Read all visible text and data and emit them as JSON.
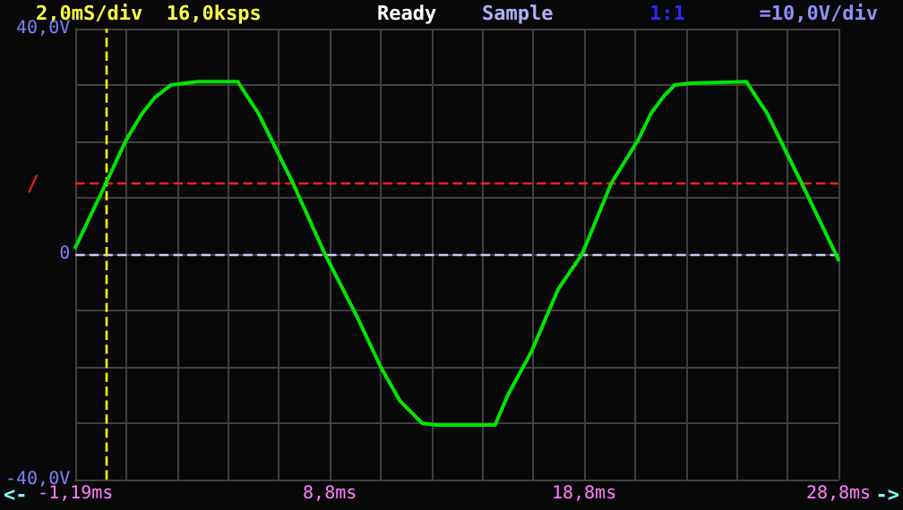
{
  "chart_data": {
    "type": "line",
    "annotations": [
      "2,0mS/div  16,0ksps",
      "Ready",
      "Sample",
      "1:1",
      "=10,0V/div",
      "<-",
      "->"
    ],
    "x": [
      -1.19,
      0.0,
      0.81,
      1.44,
      1.94,
      2.56,
      3.12,
      3.62,
      5.19,
      5.56,
      6.0,
      7.37,
      8.62,
      9.87,
      10.81,
      11.56,
      12.44,
      13.0,
      15.31,
      15.81,
      16.75,
      17.79,
      18.73,
      19.87,
      20.94,
      21.44,
      21.94,
      22.37,
      23.0,
      25.19,
      25.56,
      26.0,
      27.37,
      28.81
    ],
    "series": [
      {
        "color": "#00e600",
        "values": [
          1.2,
          12.5,
          20.3,
          25.0,
          27.8,
          30.0,
          30.3,
          30.6,
          30.6,
          28.0,
          25.0,
          12.5,
          0.0,
          -11.0,
          -20.0,
          -26.0,
          -30.0,
          -30.3,
          -30.3,
          -25.0,
          -17.2,
          -6.2,
          0.0,
          12.5,
          20.3,
          25.0,
          28.0,
          30.0,
          30.3,
          30.6,
          28.0,
          25.0,
          12.5,
          -1.0
        ]
      }
    ],
    "xlim": [
      -1.19,
      28.81
    ],
    "xticks": [
      {
        "value": -1.19,
        "label": "-1,19ms"
      },
      {
        "value": 0.81,
        "label": null
      },
      {
        "value": 2.81,
        "label": null
      },
      {
        "value": 4.81,
        "label": null
      },
      {
        "value": 6.81,
        "label": null
      },
      {
        "value": 8.81,
        "label": "8,8ms"
      },
      {
        "value": 10.81,
        "label": null
      },
      {
        "value": 12.81,
        "label": null
      },
      {
        "value": 14.81,
        "label": null
      },
      {
        "value": 16.81,
        "label": null
      },
      {
        "value": 18.81,
        "label": "18,8ms"
      },
      {
        "value": 20.81,
        "label": null
      },
      {
        "value": 22.81,
        "label": null
      },
      {
        "value": 24.81,
        "label": null
      },
      {
        "value": 26.81,
        "label": null
      },
      {
        "value": 28.81,
        "label": "28,8ms"
      }
    ],
    "ylim": [
      -40,
      40
    ],
    "yticks": [
      {
        "value": -40,
        "label": "-40,0V"
      },
      {
        "value": -30,
        "label": null
      },
      {
        "value": -20,
        "label": null
      },
      {
        "value": -10,
        "label": null
      },
      0,
      {
        "value": 10,
        "label": null
      },
      {
        "value": 20,
        "label": null
      },
      {
        "value": 30,
        "label": null
      },
      {
        "value": 40,
        "label": "40,0V"
      }
    ],
    "ref_lines": [
      {
        "axis": "y",
        "value": 12.5,
        "label": "/",
        "color": "#ff2020",
        "line_style": "dashed"
      },
      {
        "axis": "y",
        "value": 0,
        "color": "#c8c8ff",
        "line_style": "dashed"
      },
      {
        "axis": "x",
        "value": 0,
        "color": "#ffff00",
        "line_style": "dashed"
      }
    ],
    "grid": true,
    "marker": "none",
    "line_style": "solid"
  }
}
